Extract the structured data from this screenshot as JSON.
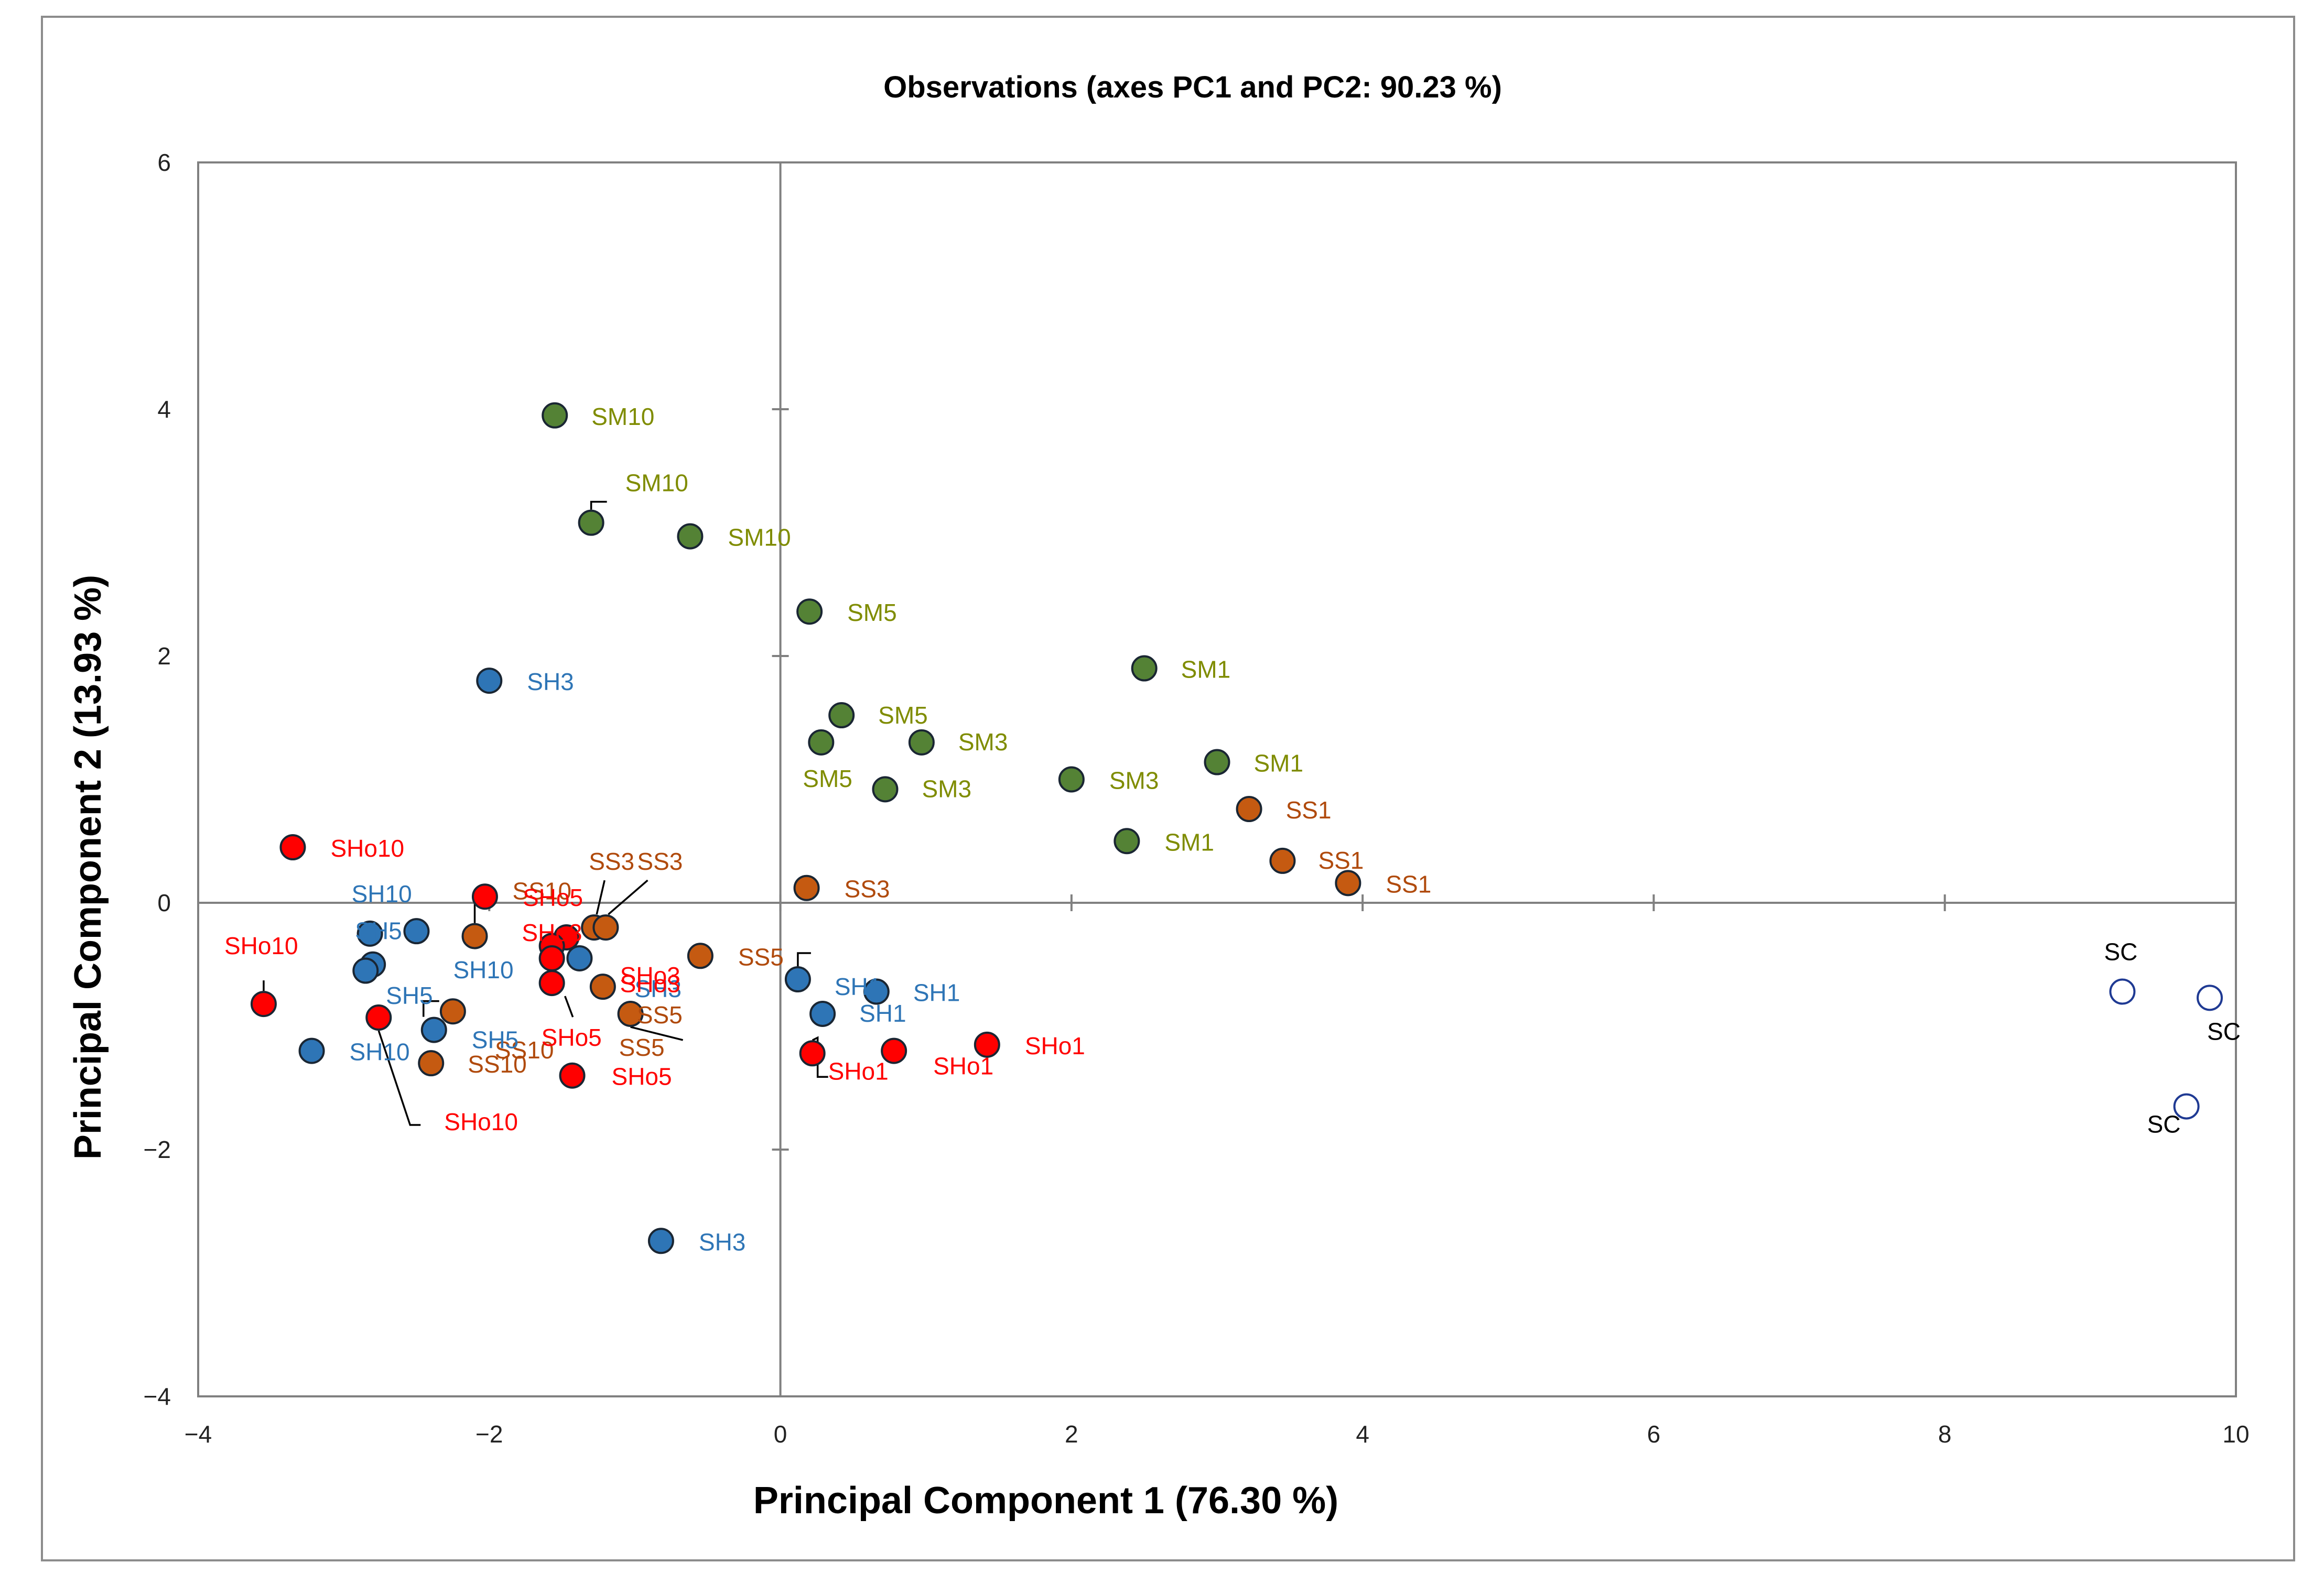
{
  "chart_data": {
    "type": "scatter",
    "title": "Observations (axes PC1 and PC2: 90.23 %)",
    "xlabel": "Principal Component 1 (76.30 %)",
    "ylabel": "Principal Component 2 (13.93 %)",
    "xlim": [
      -4,
      10
    ],
    "ylim": [
      -4,
      6
    ],
    "xticks": [
      "-4",
      "-2",
      "0",
      "2",
      "4",
      "6",
      "8",
      "10"
    ],
    "yticks": [
      "-4",
      "-2",
      "0",
      "2",
      "4",
      "6"
    ],
    "grid": false,
    "legend": "none",
    "colors": {
      "SM": "#548235",
      "SS": "#c55a11",
      "SH": "#2e75b6",
      "SHo": "#ff0000",
      "SC": "#ffffff",
      "SM_label": "#7f8c00",
      "SS_label": "#b04a0c",
      "SH_label": "#2e75b6",
      "SHo_label": "#ff0000",
      "SC_label": "#000000",
      "SC_stroke": "#1f3a93"
    },
    "points": [
      {
        "group": "SM",
        "label": "SM10",
        "x": -1.55,
        "y": 3.95
      },
      {
        "group": "SM",
        "label": "SM10",
        "x": -1.3,
        "y": 3.08
      },
      {
        "group": "SM",
        "label": "SM10",
        "x": -0.62,
        "y": 2.97
      },
      {
        "group": "SM",
        "label": "SM5",
        "x": 0.2,
        "y": 2.36
      },
      {
        "group": "SM",
        "label": "SM5",
        "x": 0.42,
        "y": 1.52
      },
      {
        "group": "SM",
        "label": "SM5",
        "x": 0.28,
        "y": 1.3
      },
      {
        "group": "SM",
        "label": "SM3",
        "x": 0.97,
        "y": 1.3
      },
      {
        "group": "SM",
        "label": "SM3",
        "x": 0.72,
        "y": 0.92
      },
      {
        "group": "SM",
        "label": "SM3",
        "x": 2.0,
        "y": 1.0
      },
      {
        "group": "SM",
        "label": "SM1",
        "x": 2.5,
        "y": 1.9
      },
      {
        "group": "SM",
        "label": "SM1",
        "x": 3.0,
        "y": 1.14
      },
      {
        "group": "SM",
        "label": "SM1",
        "x": 2.38,
        "y": 0.5
      },
      {
        "group": "SS",
        "label": "SS1",
        "x": 3.22,
        "y": 0.76
      },
      {
        "group": "SS",
        "label": "SS1",
        "x": 3.45,
        "y": 0.34
      },
      {
        "group": "SS",
        "label": "SS1",
        "x": 3.9,
        "y": 0.16
      },
      {
        "group": "SS",
        "label": "SS3",
        "x": 0.18,
        "y": 0.12
      },
      {
        "group": "SS",
        "label": "SS3",
        "x": -1.28,
        "y": -0.2
      },
      {
        "group": "SS",
        "label": "SS3",
        "x": -1.2,
        "y": -0.2
      },
      {
        "group": "SS",
        "label": "SS5",
        "x": -0.55,
        "y": -0.43
      },
      {
        "group": "SS",
        "label": "SS5",
        "x": -1.22,
        "y": -0.68
      },
      {
        "group": "SS",
        "label": "SS5",
        "x": -1.03,
        "y": -0.9
      },
      {
        "group": "SS",
        "label": "SS10",
        "x": -2.1,
        "y": -0.27
      },
      {
        "group": "SS",
        "label": "SS10",
        "x": -2.25,
        "y": -0.88
      },
      {
        "group": "SS",
        "label": "SS10",
        "x": -2.4,
        "y": -1.3
      },
      {
        "group": "SH",
        "label": "SH1",
        "x": 0.12,
        "y": -0.62
      },
      {
        "group": "SH",
        "label": "SH1",
        "x": 0.66,
        "y": -0.72
      },
      {
        "group": "SH",
        "label": "SH1",
        "x": 0.29,
        "y": -0.9
      },
      {
        "group": "SH",
        "label": "SH3",
        "x": -2.0,
        "y": 1.8
      },
      {
        "group": "SH",
        "label": "SH3",
        "x": -1.38,
        "y": -0.45
      },
      {
        "group": "SH",
        "label": "SH3",
        "x": -0.82,
        "y": -2.74
      },
      {
        "group": "SH",
        "label": "SH5",
        "x": -2.8,
        "y": -0.5
      },
      {
        "group": "SH",
        "label": "SH5",
        "x": -2.85,
        "y": -0.55
      },
      {
        "group": "SH",
        "label": "SH5",
        "x": -2.38,
        "y": -1.03
      },
      {
        "group": "SH",
        "label": "SH10",
        "x": -2.82,
        "y": -0.25
      },
      {
        "group": "SH",
        "label": "SH10",
        "x": -2.5,
        "y": -0.23
      },
      {
        "group": "SH",
        "label": "SH10",
        "x": -3.22,
        "y": -1.2
      },
      {
        "group": "SHo",
        "label": "SHo1",
        "x": 1.42,
        "y": -1.15
      },
      {
        "group": "SHo",
        "label": "SHo1",
        "x": 0.78,
        "y": -1.2
      },
      {
        "group": "SHo",
        "label": "SHo1",
        "x": 0.22,
        "y": -1.22
      },
      {
        "group": "SHo",
        "label": "SHo3",
        "x": -1.47,
        "y": -0.28
      },
      {
        "group": "SHo",
        "label": "SHo3",
        "x": -1.57,
        "y": -0.35
      },
      {
        "group": "SHo",
        "label": "SHo3",
        "x": -1.57,
        "y": -0.45
      },
      {
        "group": "SHo",
        "label": "SHo5",
        "x": -2.03,
        "y": 0.05
      },
      {
        "group": "SHo",
        "label": "SHo5",
        "x": -1.57,
        "y": -0.65
      },
      {
        "group": "SHo",
        "label": "SHo5",
        "x": -1.43,
        "y": -1.4
      },
      {
        "group": "SHo",
        "label": "SHo10",
        "x": -3.35,
        "y": 0.45
      },
      {
        "group": "SHo",
        "label": "SHo10",
        "x": -3.55,
        "y": -0.82
      },
      {
        "group": "SHo",
        "label": "SHo10",
        "x": -2.76,
        "y": -0.93
      },
      {
        "group": "SC",
        "label": "SC",
        "x": 9.22,
        "y": -0.72
      },
      {
        "group": "SC",
        "label": "SC",
        "x": 9.82,
        "y": -0.77
      },
      {
        "group": "SC",
        "label": "SC",
        "x": 9.66,
        "y": -1.65
      }
    ]
  }
}
